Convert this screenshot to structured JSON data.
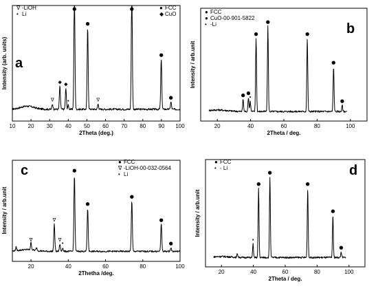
{
  "chart_data": [
    {
      "panel": "a",
      "type": "line",
      "letter": "a",
      "xlabel": "2Theta (deg.)",
      "ylabel": "Intensity (arb. units)",
      "xlim": [
        10,
        100
      ],
      "xticks": [
        10,
        20,
        30,
        40,
        50,
        60,
        70,
        80,
        90,
        100
      ],
      "legend_left": [
        {
          "symbol": "∇",
          "label": "-LiOH",
          "color": "#000000"
        },
        {
          "symbol": "•",
          "label": "Li",
          "color": "#e0201b"
        }
      ],
      "legend_right": [
        {
          "symbol": "●",
          "label": "FCC",
          "color": "#000000"
        },
        {
          "symbol": "◆",
          "label": "CuO",
          "color": "#000000"
        }
      ],
      "baseline": 0.06,
      "hump": {
        "center": 18,
        "width": 5,
        "height": 0.03
      },
      "peaks": [
        {
          "x": 31.5,
          "h": 0.05,
          "marker": "∇",
          "mcolor": "#000000"
        },
        {
          "x": 35.5,
          "h": 0.22,
          "marker": "◆",
          "mcolor": "#000000"
        },
        {
          "x": 38.7,
          "h": 0.2,
          "marker": "◆",
          "mcolor": "#000000"
        },
        {
          "x": 40.0,
          "h": 0.04,
          "marker": "•",
          "mcolor": "#e0201b"
        },
        {
          "x": 43.3,
          "h": 1.15,
          "marker": "●",
          "mcolor": "#000000"
        },
        {
          "x": 50.4,
          "h": 0.78,
          "marker": "●",
          "mcolor": "#000000"
        },
        {
          "x": 56.0,
          "h": 0.05,
          "marker": "∇",
          "mcolor": "#000000"
        },
        {
          "x": 74.1,
          "h": 1.15,
          "marker": "●",
          "mcolor": "#000000"
        },
        {
          "x": 89.9,
          "h": 0.48,
          "marker": "●",
          "mcolor": "#000000"
        },
        {
          "x": 95.1,
          "h": 0.07,
          "marker": "●",
          "mcolor": "#000000"
        }
      ]
    },
    {
      "panel": "b",
      "type": "line",
      "letter": "b",
      "xlabel": "2Theta / deg.",
      "ylabel": "Intensity / arb.unit",
      "xlim": [
        10,
        110
      ],
      "xticks": [
        20,
        40,
        60,
        80,
        100
      ],
      "legend_left": [
        {
          "symbol": "●",
          "label": "FCC",
          "color": "#000000"
        },
        {
          "symbol": "●",
          "label": "CuO-00-901-5822",
          "color": "#000000"
        },
        {
          "symbol": "•",
          "label": "-Li",
          "color": "#e0201b"
        }
      ],
      "legend_right": [],
      "baseline": 0.04,
      "hump": {
        "center": 20,
        "width": 8,
        "height": 0.015
      },
      "peaks": [
        {
          "x": 35.5,
          "h": 0.12,
          "marker": "●",
          "mcolor": "#000000"
        },
        {
          "x": 38.7,
          "h": 0.14,
          "marker": "●",
          "mcolor": "#000000"
        },
        {
          "x": 39.8,
          "h": 0.1,
          "marker": "•",
          "mcolor": "#e0201b"
        },
        {
          "x": 43.3,
          "h": 0.72,
          "marker": "●",
          "mcolor": "#000000"
        },
        {
          "x": 50.4,
          "h": 0.84,
          "marker": "●",
          "mcolor": "#000000"
        },
        {
          "x": 74.1,
          "h": 0.72,
          "marker": "●",
          "mcolor": "#000000"
        },
        {
          "x": 89.9,
          "h": 0.44,
          "marker": "●",
          "mcolor": "#000000"
        },
        {
          "x": 95.1,
          "h": 0.06,
          "marker": "●",
          "mcolor": "#000000"
        }
      ]
    },
    {
      "panel": "c",
      "type": "line",
      "letter": "c",
      "xlabel": "2Thetha /deg.",
      "ylabel": "Intensity / arb.unit",
      "xlim": [
        10,
        100
      ],
      "xticks": [
        20,
        40,
        60,
        80,
        100
      ],
      "legend_left": [
        {
          "symbol": "●",
          "label": "FCC",
          "color": "#000000"
        },
        {
          "symbol": "∇",
          "label": "-LiOH-00-032-0564",
          "color": "#000000"
        },
        {
          "symbol": "•",
          "label": "Li",
          "color": "#e0201b"
        }
      ],
      "legend_right": [],
      "baseline": 0.05,
      "hump": {
        "center": 18,
        "width": 6,
        "height": 0.02
      },
      "peaks": [
        {
          "x": 12.0,
          "h": 0.04,
          "marker": "",
          "mcolor": "#000000"
        },
        {
          "x": 20.0,
          "h": 0.08,
          "marker": "∇",
          "mcolor": "#000000"
        },
        {
          "x": 23.0,
          "h": 0.03,
          "marker": "",
          "mcolor": "#000000"
        },
        {
          "x": 32.5,
          "h": 0.3,
          "marker": "∇",
          "mcolor": "#000000"
        },
        {
          "x": 35.5,
          "h": 0.08,
          "marker": "∇",
          "mcolor": "#000000"
        },
        {
          "x": 37.0,
          "h": 0.04,
          "marker": "•",
          "mcolor": "#e0201b"
        },
        {
          "x": 43.3,
          "h": 0.85,
          "marker": "●",
          "mcolor": "#000000"
        },
        {
          "x": 50.4,
          "h": 0.48,
          "marker": "●",
          "mcolor": "#000000"
        },
        {
          "x": 74.1,
          "h": 0.56,
          "marker": "●",
          "mcolor": "#000000"
        },
        {
          "x": 89.9,
          "h": 0.3,
          "marker": "●",
          "mcolor": "#000000"
        },
        {
          "x": 95.1,
          "h": 0.04,
          "marker": "●",
          "mcolor": "#000000"
        }
      ]
    },
    {
      "panel": "d",
      "type": "line",
      "letter": "d",
      "xlabel": "2Theta / deg.",
      "ylabel": "Intensity / arb.unit",
      "xlim": [
        10,
        110
      ],
      "xticks": [
        20,
        40,
        60,
        80,
        100
      ],
      "legend_left": [
        {
          "symbol": "●",
          "label": "FCC",
          "color": "#000000"
        },
        {
          "symbol": "•",
          "label": "- Li",
          "color": "#e0201b"
        }
      ],
      "legend_right": [],
      "baseline": 0.04,
      "hump": {
        "center": 20,
        "width": 8,
        "height": 0.01
      },
      "peaks": [
        {
          "x": 30.0,
          "h": 0.04,
          "marker": "",
          "mcolor": "#000000"
        },
        {
          "x": 39.8,
          "h": 0.14,
          "marker": "•",
          "mcolor": "#e0201b"
        },
        {
          "x": 43.3,
          "h": 0.72,
          "marker": "●",
          "mcolor": "#000000"
        },
        {
          "x": 50.4,
          "h": 0.84,
          "marker": "●",
          "mcolor": "#000000"
        },
        {
          "x": 74.1,
          "h": 0.72,
          "marker": "●",
          "mcolor": "#000000"
        },
        {
          "x": 89.9,
          "h": 0.44,
          "marker": "●",
          "mcolor": "#000000"
        },
        {
          "x": 95.1,
          "h": 0.06,
          "marker": "●",
          "mcolor": "#000000"
        }
      ]
    }
  ]
}
